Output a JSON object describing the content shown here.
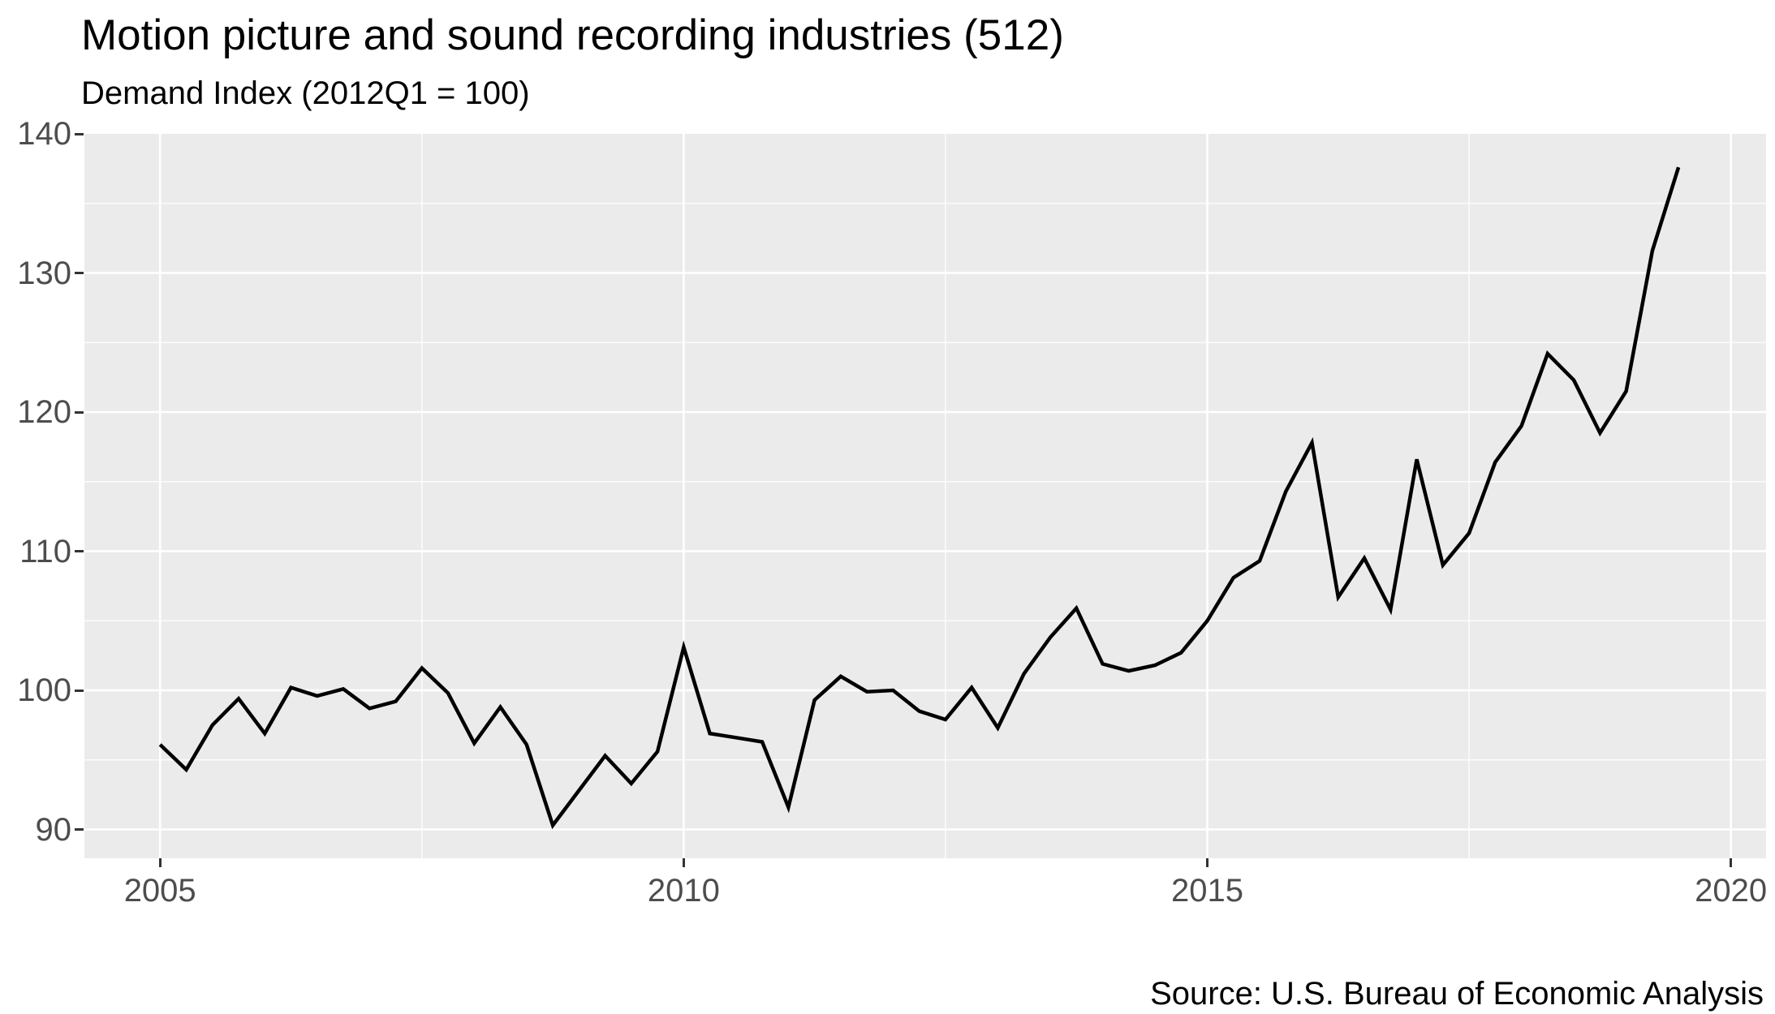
{
  "header": {
    "title": "Motion picture and sound recording industries (512)",
    "subtitle": "Demand Index (2012Q1 = 100)"
  },
  "caption": "Source: U.S. Bureau of Economic Analysis",
  "chart_data": {
    "type": "line",
    "title": "Motion picture and sound recording industries (512)",
    "subtitle": "Demand Index (2012Q1 = 100)",
    "xlabel": "",
    "ylabel": "",
    "x_unit": "quarter",
    "x_start": "2005Q1",
    "x_end": "2019Q3",
    "ylim": [
      87.9,
      140
    ],
    "xlim_years": [
      2004.28,
      2020.35
    ],
    "grid": "on",
    "legend": "none",
    "panel_bg": "#EBEBEB",
    "grid_color": "#FFFFFF",
    "line_color": "#000000",
    "axis_text_color": "#4D4D4D",
    "tick_color": "#333333",
    "y_ticks": [
      {
        "label": "90",
        "value": 90
      },
      {
        "label": "100",
        "value": 100
      },
      {
        "label": "110",
        "value": 110
      },
      {
        "label": "120",
        "value": 120
      },
      {
        "label": "130",
        "value": 130
      },
      {
        "label": "140",
        "value": 140
      }
    ],
    "y_minor": [
      95,
      105,
      115,
      125,
      135
    ],
    "x_ticks": [
      {
        "label": "2005",
        "year": 2005
      },
      {
        "label": "2010",
        "year": 2010
      },
      {
        "label": "2015",
        "year": 2015
      },
      {
        "label": "2020",
        "year": 2020
      }
    ],
    "x_minor_years": [
      2007.5,
      2012.5,
      2017.5
    ],
    "series": [
      {
        "name": "Demand Index (2012Q1 = 100)",
        "color": "#000000",
        "points": [
          {
            "q": "2005Q1",
            "v": 96.1
          },
          {
            "q": "2005Q2",
            "v": 94.3
          },
          {
            "q": "2005Q3",
            "v": 97.5
          },
          {
            "q": "2005Q4",
            "v": 99.4
          },
          {
            "q": "2006Q1",
            "v": 96.9
          },
          {
            "q": "2006Q2",
            "v": 100.2
          },
          {
            "q": "2006Q3",
            "v": 99.6
          },
          {
            "q": "2006Q4",
            "v": 100.1
          },
          {
            "q": "2007Q1",
            "v": 98.7
          },
          {
            "q": "2007Q2",
            "v": 99.2
          },
          {
            "q": "2007Q3",
            "v": 101.6
          },
          {
            "q": "2007Q4",
            "v": 99.8
          },
          {
            "q": "2008Q1",
            "v": 96.2
          },
          {
            "q": "2008Q2",
            "v": 98.8
          },
          {
            "q": "2008Q3",
            "v": 96.1
          },
          {
            "q": "2008Q4",
            "v": 90.3
          },
          {
            "q": "2009Q1",
            "v": 92.8
          },
          {
            "q": "2009Q2",
            "v": 95.3
          },
          {
            "q": "2009Q3",
            "v": 93.3
          },
          {
            "q": "2009Q4",
            "v": 95.6
          },
          {
            "q": "2010Q1",
            "v": 103.1
          },
          {
            "q": "2010Q2",
            "v": 96.9
          },
          {
            "q": "2010Q3",
            "v": 96.6
          },
          {
            "q": "2010Q4",
            "v": 96.3
          },
          {
            "q": "2011Q1",
            "v": 91.6
          },
          {
            "q": "2011Q2",
            "v": 99.3
          },
          {
            "q": "2011Q3",
            "v": 101.0
          },
          {
            "q": "2011Q4",
            "v": 99.9
          },
          {
            "q": "2012Q1",
            "v": 100.0
          },
          {
            "q": "2012Q2",
            "v": 98.5
          },
          {
            "q": "2012Q3",
            "v": 97.9
          },
          {
            "q": "2012Q4",
            "v": 100.2
          },
          {
            "q": "2013Q1",
            "v": 97.3
          },
          {
            "q": "2013Q2",
            "v": 101.2
          },
          {
            "q": "2013Q3",
            "v": 103.8
          },
          {
            "q": "2013Q4",
            "v": 105.9
          },
          {
            "q": "2014Q1",
            "v": 101.9
          },
          {
            "q": "2014Q2",
            "v": 101.4
          },
          {
            "q": "2014Q3",
            "v": 101.8
          },
          {
            "q": "2014Q4",
            "v": 102.7
          },
          {
            "q": "2015Q1",
            "v": 105.0
          },
          {
            "q": "2015Q2",
            "v": 108.1
          },
          {
            "q": "2015Q3",
            "v": 109.3
          },
          {
            "q": "2015Q4",
            "v": 114.3
          },
          {
            "q": "2016Q1",
            "v": 117.8
          },
          {
            "q": "2016Q2",
            "v": 106.7
          },
          {
            "q": "2016Q3",
            "v": 109.5
          },
          {
            "q": "2016Q4",
            "v": 105.8
          },
          {
            "q": "2017Q1",
            "v": 116.6
          },
          {
            "q": "2017Q2",
            "v": 109.0
          },
          {
            "q": "2017Q3",
            "v": 111.3
          },
          {
            "q": "2017Q4",
            "v": 116.4
          },
          {
            "q": "2018Q1",
            "v": 119.0
          },
          {
            "q": "2018Q2",
            "v": 124.2
          },
          {
            "q": "2018Q3",
            "v": 122.3
          },
          {
            "q": "2018Q4",
            "v": 118.5
          },
          {
            "q": "2019Q1",
            "v": 121.5
          },
          {
            "q": "2019Q2",
            "v": 131.6
          },
          {
            "q": "2019Q3",
            "v": 137.6
          }
        ]
      }
    ]
  }
}
